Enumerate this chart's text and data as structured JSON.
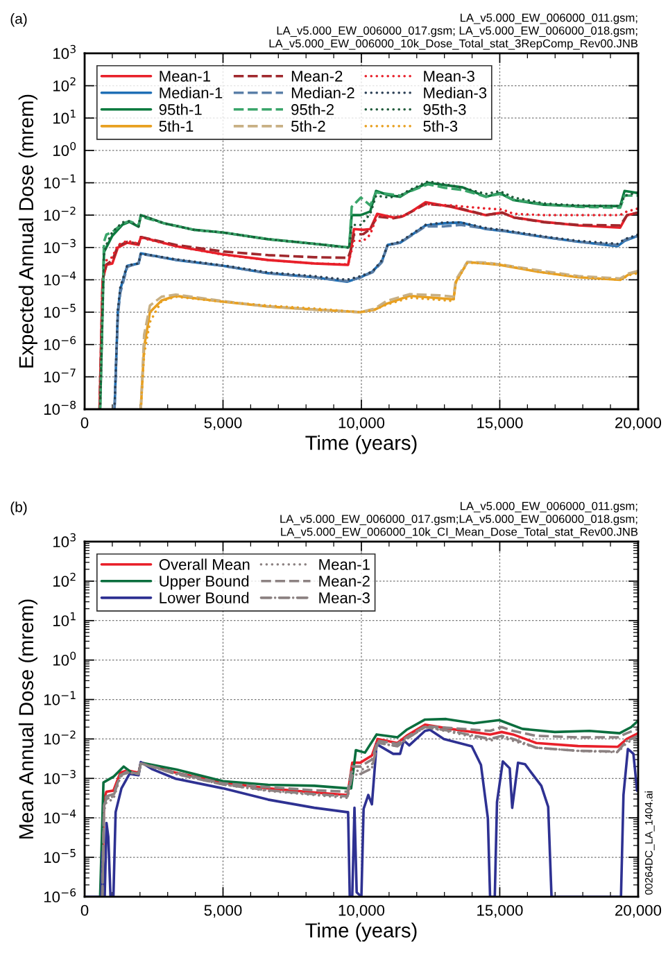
{
  "chart_data": [
    {
      "type": "line",
      "title": "(a)",
      "xlabel": "Time (years)",
      "ylabel": "Expected Annual Dose (mrem)",
      "annotations": [
        "LA_v5.000_EW_006000_011.gsm;\nLA_v5.000_EW_006000_017.gsm; LA_v5.000_EW_006000_018.gsm;\nLA_v5.000_EW_006000_10k_Dose_Total_stat_3RepComp_Rev00.JNB"
      ],
      "log": "y",
      "grid": true,
      "legend": "top left",
      "xlim": [
        0,
        20000
      ],
      "ylim": [
        1e-08,
        1000
      ],
      "xticks": [
        0,
        {
          "value": 1000,
          "label": null
        },
        {
          "value": 2000,
          "label": null
        },
        {
          "value": 3000,
          "label": null
        },
        {
          "value": 4000,
          "label": null
        },
        {
          "value": 5000,
          "label": "5,000"
        },
        {
          "value": 6000,
          "label": null
        },
        {
          "value": 7000,
          "label": null
        },
        {
          "value": 8000,
          "label": null
        },
        {
          "value": 9000,
          "label": null
        },
        {
          "value": 10000,
          "label": "10,000"
        },
        {
          "value": 11000,
          "label": null
        },
        {
          "value": 12000,
          "label": null
        },
        {
          "value": 13000,
          "label": null
        },
        {
          "value": 14000,
          "label": null
        },
        {
          "value": 15000,
          "label": "15,000"
        },
        {
          "value": 16000,
          "label": null
        },
        {
          "value": 17000,
          "label": null
        },
        {
          "value": 18000,
          "label": null
        },
        {
          "value": 19000,
          "label": null
        },
        {
          "value": 20000,
          "label": "20,000"
        }
      ],
      "yticks": [
        {
          "value": 1e-08,
          "label": "10$^{−8}$"
        },
        {
          "value": 1e-07,
          "label": "10$^{−7}$"
        },
        {
          "value": 1e-06,
          "label": "10$^{−6}$"
        },
        {
          "value": 1e-05,
          "label": "10$^{−5}$"
        },
        {
          "value": 0.0001,
          "label": "10$^{−4}$"
        },
        {
          "value": 0.001,
          "label": "10$^{−3}$"
        },
        {
          "value": 0.01,
          "label": "10$^{−2}$"
        },
        {
          "value": 0.1,
          "label": "10$^{−1}$"
        },
        {
          "value": 1,
          "label": "10$^{0}$"
        },
        {
          "value": 10,
          "label": "10$^{1}$"
        },
        {
          "value": 100,
          "label": "10$^{2}$"
        },
        {
          "value": 1000,
          "label": "10$^{3}$"
        }
      ],
      "series": [
        {
          "name": "Mean-1",
          "color": "#e8202a",
          "line_style": "solid",
          "x": [
            540,
            650,
            790,
            1000,
            1200,
            1540,
            1950,
            2030,
            3290,
            5000,
            6630,
            8300,
            9520,
            9610,
            9730,
            10070,
            10320,
            10570,
            11150,
            11480,
            11820,
            12320,
            13240,
            14500,
            15080,
            15500,
            16590,
            17840,
            19350,
            19600,
            20000
          ],
          "values": [
            1e-08,
            0.0001,
            0.00029,
            0.00032,
            0.001,
            0.0014,
            0.0012,
            0.0021,
            0.0011,
            0.00061,
            0.00041,
            0.00032,
            0.00029,
            0.00072,
            0.0037,
            0.0035,
            0.0037,
            0.011,
            0.0085,
            0.0091,
            0.013,
            0.025,
            0.018,
            0.01,
            0.012,
            0.0085,
            0.0062,
            0.0048,
            0.0041,
            0.01,
            0.012
          ]
        },
        {
          "name": "Median-1",
          "color": "#1f6fb5",
          "line_style": "solid",
          "x": [
            1080,
            1200,
            1290,
            1540,
            1950,
            2030,
            3290,
            5000,
            6630,
            8300,
            9480,
            9980,
            10400,
            10740,
            10950,
            11400,
            12320,
            13000,
            13580,
            14500,
            15170,
            16590,
            17840,
            19260,
            19510,
            20000
          ],
          "values": [
            1e-08,
            1e-05,
            5.1e-05,
            0.00027,
            0.00032,
            0.00066,
            0.00041,
            0.00027,
            0.00016,
            0.00012,
            8.7e-05,
            0.00012,
            0.00018,
            0.00037,
            0.0012,
            0.0014,
            0.0048,
            0.0056,
            0.0059,
            0.0037,
            0.0032,
            0.0021,
            0.0015,
            0.0011,
            0.0016,
            0.0023
          ]
        },
        {
          "name": "95th-1",
          "color": "#0b7a3e",
          "line_style": "solid",
          "x": [
            560,
            700,
            785,
            1000,
            1370,
            1620,
            1950,
            2030,
            2870,
            3960,
            5000,
            6630,
            8300,
            9520,
            9565,
            9650,
            9980,
            10320,
            10530,
            10990,
            11400,
            11660,
            12410,
            13000,
            13660,
            14500,
            15000,
            15500,
            16590,
            17840,
            19350,
            19510,
            20000
          ],
          "values": [
            1e-08,
            0.00072,
            0.001,
            0.0023,
            0.0051,
            0.0062,
            0.0044,
            0.01,
            0.0056,
            0.0035,
            0.0029,
            0.0018,
            0.0013,
            0.001,
            0.0011,
            0.01,
            0.01,
            0.013,
            0.056,
            0.041,
            0.037,
            0.051,
            0.1,
            0.085,
            0.072,
            0.037,
            0.048,
            0.029,
            0.021,
            0.019,
            0.019,
            0.056,
            0.048
          ]
        },
        {
          "name": "5th-1",
          "color": "#e8a021",
          "line_style": "solid",
          "x": [
            2030,
            2150,
            2360,
            2780,
            3290,
            5000,
            6630,
            8300,
            9970,
            10490,
            10900,
            11740,
            12830,
            13330,
            13410,
            13830,
            14500,
            15000,
            16340,
            17840,
            19350,
            19680,
            20000
          ],
          "values": [
            1e-08,
            8.5e-07,
            1e-05,
            2.3e-05,
            3.2e-05,
            2.1e-05,
            1.5e-05,
            1.2e-05,
            1e-05,
            1.2e-05,
            1.8e-05,
            3.2e-05,
            2.7e-05,
            2.5e-05,
            8.5e-05,
            0.00035,
            0.00032,
            0.00029,
            0.00018,
            0.00012,
            0.0001,
            0.00015,
            0.00018
          ]
        },
        {
          "name": "Mean-2",
          "color": "#a0282d",
          "line_style": "dashed",
          "x": [
            540,
            650,
            790,
            1000,
            1200,
            1540,
            1950,
            2030,
            3290,
            5000,
            6630,
            8300,
            9520,
            9610,
            9730,
            10070,
            10320,
            10570,
            11150,
            11480,
            11820,
            12320,
            13240,
            14500,
            15080,
            15500,
            16590,
            17840,
            19350,
            19600,
            20000
          ],
          "values": [
            1e-08,
            0.0001,
            0.0003,
            0.0004,
            0.0011,
            0.0015,
            0.0013,
            0.0021,
            0.0012,
            0.00075,
            0.00058,
            0.0005,
            0.00048,
            0.0008,
            0.0025,
            0.0026,
            0.0037,
            0.009,
            0.008,
            0.0091,
            0.013,
            0.022,
            0.019,
            0.01,
            0.012,
            0.0085,
            0.006,
            0.005,
            0.0048,
            0.01,
            0.012
          ]
        },
        {
          "name": "Median-2",
          "color": "#5a7fa8",
          "line_style": "dashed",
          "x": [
            1080,
            1200,
            1290,
            1540,
            1950,
            2030,
            3290,
            5000,
            6630,
            8300,
            9480,
            9980,
            10400,
            10740,
            10950,
            11400,
            12320,
            13000,
            13580,
            14500,
            15170,
            16590,
            17840,
            19260,
            19510,
            20000
          ],
          "values": [
            1e-08,
            8e-06,
            4e-05,
            0.00025,
            0.00033,
            0.00063,
            0.00042,
            0.00027,
            0.00016,
            0.00012,
            9e-05,
            0.00012,
            0.00017,
            0.00035,
            0.0012,
            0.0014,
            0.0045,
            0.0045,
            0.005,
            0.0038,
            0.0033,
            0.0021,
            0.0015,
            0.0012,
            0.0017,
            0.0023
          ]
        },
        {
          "name": "95th-2",
          "color": "#3aa56a",
          "line_style": "dashed",
          "x": [
            560,
            700,
            785,
            1000,
            1370,
            1620,
            1950,
            2030,
            2870,
            3960,
            5000,
            6630,
            8300,
            9520,
            9565,
            9650,
            9980,
            10320,
            10530,
            10990,
            11400,
            11660,
            12410,
            13000,
            13660,
            14500,
            15000,
            15500,
            16590,
            17840,
            19350,
            19510,
            20000
          ],
          "values": [
            1e-08,
            0.0015,
            0.0025,
            0.003,
            0.0055,
            0.0065,
            0.005,
            0.009,
            0.0056,
            0.0035,
            0.0029,
            0.0018,
            0.0013,
            0.001,
            0.0012,
            0.018,
            0.035,
            0.02,
            0.05,
            0.045,
            0.04,
            0.05,
            0.09,
            0.07,
            0.06,
            0.037,
            0.045,
            0.03,
            0.022,
            0.018,
            0.017,
            0.04,
            0.04
          ]
        },
        {
          "name": "5th-2",
          "color": "#c8b084",
          "line_style": "dashed",
          "x": [
            2030,
            2150,
            2360,
            2780,
            3290,
            5000,
            6630,
            8300,
            9970,
            10490,
            10900,
            11740,
            12830,
            13330,
            13410,
            13830,
            14500,
            15000,
            16340,
            17840,
            19350,
            19680,
            20000
          ],
          "values": [
            1e-08,
            2e-06,
            1.6e-05,
            3e-05,
            3.5e-05,
            2.2e-05,
            1.5e-05,
            1.2e-05,
            1e-05,
            1.3e-05,
            2.2e-05,
            3.6e-05,
            3.3e-05,
            3e-05,
            0.0001,
            0.00036,
            0.00034,
            0.0003,
            0.0002,
            0.00013,
            0.00011,
            0.00016,
            0.00019
          ]
        },
        {
          "name": "Mean-3",
          "color": "#e8202a",
          "line_style": "dotted",
          "x": [
            540,
            650,
            790,
            1000,
            1200,
            1540,
            1950,
            2030,
            3290,
            5000,
            6630,
            8300,
            9520,
            9610,
            9730,
            10070,
            10320,
            10570,
            11150,
            11480,
            11820,
            12320,
            13240,
            14500,
            15080,
            15500,
            16590,
            17840,
            19350,
            19600,
            20000
          ],
          "values": [
            1e-08,
            0.0001,
            0.0004,
            0.0005,
            0.0012,
            0.0016,
            0.0013,
            0.002,
            0.0011,
            0.0006,
            0.00041,
            0.00032,
            0.0003,
            0.0006,
            0.0016,
            0.0016,
            0.0025,
            0.01,
            0.0085,
            0.0091,
            0.013,
            0.022,
            0.02,
            0.016,
            0.015,
            0.011,
            0.01,
            0.01,
            0.01,
            0.013,
            0.016
          ]
        },
        {
          "name": "Median-3",
          "color": "#2b3f55",
          "line_style": "dotted",
          "x": [
            1080,
            1200,
            1290,
            1540,
            1950,
            2030,
            3290,
            5000,
            6630,
            8300,
            9480,
            9980,
            10400,
            10740,
            10950,
            11400,
            12320,
            13000,
            13580,
            14500,
            15170,
            16590,
            17840,
            19260,
            19510,
            20000
          ],
          "values": [
            1e-08,
            1.2e-05,
            6e-05,
            0.00028,
            0.00032,
            0.00065,
            0.00043,
            0.00028,
            0.00017,
            0.00013,
            0.0001,
            0.00013,
            0.00018,
            0.0004,
            0.0012,
            0.0015,
            0.005,
            0.006,
            0.006,
            0.004,
            0.0034,
            0.0022,
            0.0016,
            0.0013,
            0.0018,
            0.0025
          ]
        },
        {
          "name": "95th-3",
          "color": "#1f5a3a",
          "line_style": "dotted",
          "x": [
            560,
            700,
            785,
            1000,
            1370,
            1620,
            1950,
            2030,
            2870,
            3960,
            5000,
            6630,
            8300,
            9520,
            9565,
            9650,
            9980,
            10320,
            10530,
            10990,
            11400,
            11660,
            12410,
            13000,
            13660,
            14500,
            15000,
            15500,
            16590,
            17840,
            19350,
            19510,
            20000
          ],
          "values": [
            1e-08,
            0.0006,
            0.0012,
            0.003,
            0.006,
            0.0065,
            0.0045,
            0.01,
            0.0056,
            0.0035,
            0.0029,
            0.0018,
            0.0013,
            0.001,
            0.001,
            0.005,
            0.005,
            0.011,
            0.04,
            0.035,
            0.04,
            0.055,
            0.11,
            0.09,
            0.07,
            0.045,
            0.055,
            0.035,
            0.023,
            0.02,
            0.019,
            0.04,
            0.05
          ]
        },
        {
          "name": "5th-3",
          "color": "#e8a021",
          "line_style": "dotted",
          "x": [
            2030,
            2150,
            2360,
            2780,
            3290,
            5000,
            6630,
            8300,
            9970,
            10490,
            10900,
            11740,
            12830,
            13330,
            13410,
            13830,
            14500,
            15000,
            16340,
            17840,
            19350,
            19680,
            20000
          ],
          "values": [
            1e-08,
            5e-07,
            5e-06,
            2.2e-05,
            3e-05,
            2.1e-05,
            1.6e-05,
            1.3e-05,
            1e-05,
            1.2e-05,
            1.7e-05,
            2.8e-05,
            2.4e-05,
            2.2e-05,
            8e-05,
            0.00034,
            0.00032,
            0.0003,
            0.00018,
            0.00012,
            0.0001,
            0.00014,
            0.00016
          ]
        }
      ]
    },
    {
      "type": "line",
      "title": "(b)",
      "xlabel": "Time (years)",
      "ylabel": "Mean Annual Dose (mrem)",
      "annotations": [
        "LA_v5.000_EW_006000_011.gsm;\nLA_v5.000_EW_006000_017.gsm;LA_v5.000_EW_006000_018.gsm;\nLA_v5.000_EW_006000_10k_CI_Mean_Dose_Total_stat_Rev00.JNB",
        "00264DC_LA_1404.ai"
      ],
      "log": "y",
      "grid": true,
      "legend": "top left",
      "xlim": [
        0,
        20000
      ],
      "ylim": [
        1e-06,
        1000
      ],
      "xticks": [
        0,
        {
          "value": 1000,
          "label": null
        },
        {
          "value": 2000,
          "label": null
        },
        {
          "value": 3000,
          "label": null
        },
        {
          "value": 4000,
          "label": null
        },
        {
          "value": 5000,
          "label": "5,000"
        },
        {
          "value": 6000,
          "label": null
        },
        {
          "value": 7000,
          "label": null
        },
        {
          "value": 8000,
          "label": null
        },
        {
          "value": 9000,
          "label": null
        },
        {
          "value": 10000,
          "label": "10,000"
        },
        {
          "value": 11000,
          "label": null
        },
        {
          "value": 12000,
          "label": null
        },
        {
          "value": 13000,
          "label": null
        },
        {
          "value": 14000,
          "label": null
        },
        {
          "value": 15000,
          "label": "15,000"
        },
        {
          "value": 16000,
          "label": null
        },
        {
          "value": 17000,
          "label": null
        },
        {
          "value": 18000,
          "label": null
        },
        {
          "value": 19000,
          "label": null
        },
        {
          "value": 20000,
          "label": "20,000"
        }
      ],
      "yticks": [
        {
          "value": 1e-06,
          "label": "10$^{−6}$"
        },
        {
          "value": 1e-05,
          "label": "10$^{−5}$"
        },
        {
          "value": 0.0001,
          "label": "10$^{−4}$"
        },
        {
          "value": 0.001,
          "label": "10$^{−3}$"
        },
        {
          "value": 0.01,
          "label": "10$^{−2}$"
        },
        {
          "value": 0.1,
          "label": "10$^{−1}$"
        },
        {
          "value": 1,
          "label": "10$^{0}$"
        },
        {
          "value": 10,
          "label": "10$^{1}$"
        },
        {
          "value": 100,
          "label": "10$^{2}$"
        },
        {
          "value": 1000,
          "label": "10$^{3}$"
        }
      ],
      "series": [
        {
          "name": "Overall Mean",
          "color": "#e8202a",
          "line_style": "solid",
          "x": [
            640,
            700,
            785,
            1040,
            1290,
            1540,
            1950,
            2030,
            3290,
            5000,
            6630,
            8300,
            9500,
            9670,
            9960,
            10380,
            10590,
            11300,
            11630,
            12300,
            13220,
            14650,
            15070,
            15480,
            16320,
            17830,
            19260,
            19590,
            20000
          ],
          "values": [
            1e-06,
            0.00029,
            0.00046,
            0.00049,
            0.0014,
            0.0016,
            0.0014,
            0.0025,
            0.0014,
            0.00079,
            0.00056,
            0.00044,
            0.00038,
            0.0025,
            0.0025,
            0.0038,
            0.01,
            0.0079,
            0.012,
            0.023,
            0.018,
            0.013,
            0.015,
            0.013,
            0.0079,
            0.0066,
            0.0063,
            0.01,
            0.014
          ]
        },
        {
          "name": "Upper Bound",
          "color": "#0b6e3e",
          "line_style": "solid",
          "x": [
            560,
            680,
            1040,
            1410,
            1700,
            1950,
            2030,
            3290,
            5000,
            6630,
            8300,
            9520,
            9630,
            9800,
            10130,
            10550,
            11300,
            11630,
            12300,
            13060,
            14060,
            14980,
            15820,
            16990,
            18240,
            19330,
            19750,
            20000
          ],
          "values": [
            1e-06,
            0.00079,
            0.0011,
            0.002,
            0.0014,
            0.0013,
            0.0025,
            0.0017,
            0.00085,
            0.00069,
            0.00065,
            0.00056,
            0.00056,
            0.0052,
            0.0045,
            0.013,
            0.011,
            0.017,
            0.031,
            0.032,
            0.025,
            0.03,
            0.018,
            0.015,
            0.016,
            0.014,
            0.02,
            0.029
          ]
        },
        {
          "name": "Lower Bound",
          "color": "#2e3192",
          "line_style": "solid",
          "x": [
            0,
            600,
            640,
            725,
            790,
            855,
            935,
            1040,
            1120,
            1330,
            1620,
            1950,
            2030,
            2450,
            3290,
            5000,
            6630,
            8300,
            9480,
            9520,
            9580,
            9670,
            9750,
            9830,
            10000,
            10080,
            10250,
            10380,
            10550,
            11150,
            11400,
            11530,
            11730,
            12300,
            12480,
            12980,
            13990,
            14320,
            14570,
            14650,
            14820,
            14900,
            15110,
            15360,
            15450,
            15660,
            15910,
            16500,
            16750,
            16870,
            19380,
            19470,
            19630,
            19830,
            19960,
            20000
          ],
          "values": [
            1e-06,
            1e-06,
            1.4e-05,
            1e-06,
            7.4e-05,
            3.3e-05,
            1e-06,
            1e-06,
            0.00014,
            0.00056,
            0.0013,
            0.0012,
            0.0026,
            0.0017,
            0.00098,
            0.00056,
            0.00029,
            0.00018,
            0.00014,
            0.00014,
            1e-06,
            1e-06,
            0.00018,
            1.3e-06,
            1e-06,
            0.00017,
            0.00038,
            0.00022,
            0.0074,
            0.0042,
            0.0042,
            0.0091,
            0.0069,
            0.016,
            0.017,
            0.01,
            0.0065,
            0.0022,
            9.8e-05,
            1e-06,
            1e-06,
            0.00025,
            0.0027,
            0.0018,
            0.00018,
            0.0025,
            0.0023,
            0.00065,
            0.00019,
            1e-06,
            1e-06,
            0.00038,
            0.0056,
            0.0042,
            0.00049,
            0.00073
          ]
        },
        {
          "name": "Mean-1",
          "color": "#8c8282",
          "line_style": "dotted",
          "x": [
            640,
            700,
            785,
            1040,
            1290,
            1540,
            1950,
            2030,
            3290,
            5000,
            6630,
            8300,
            9500,
            9670,
            9960,
            10380,
            10590,
            11300,
            11630,
            12300,
            13220,
            14650,
            15070,
            15480,
            16320,
            17830,
            19260,
            19590,
            20000
          ],
          "values": [
            1e-06,
            0.00015,
            0.00025,
            0.0003,
            0.0011,
            0.0014,
            0.0013,
            0.0024,
            0.0013,
            0.0007,
            0.00048,
            0.00038,
            0.00032,
            0.0015,
            0.0016,
            0.0022,
            0.008,
            0.0065,
            0.01,
            0.02,
            0.015,
            0.009,
            0.011,
            0.009,
            0.006,
            0.005,
            0.0046,
            0.008,
            0.011
          ]
        },
        {
          "name": "Mean-2",
          "color": "#8c8282",
          "line_style": "dashed",
          "x": [
            640,
            700,
            785,
            1040,
            1290,
            1540,
            1950,
            2030,
            3290,
            5000,
            6630,
            8300,
            9500,
            9670,
            9960,
            10380,
            10590,
            11300,
            11630,
            12300,
            13220,
            14650,
            15070,
            15480,
            16320,
            17830,
            19260,
            19590,
            20000
          ],
          "values": [
            1e-06,
            0.0002,
            0.00035,
            0.0004,
            0.0012,
            0.0015,
            0.0013,
            0.0024,
            0.0014,
            0.00075,
            0.0006,
            0.0005,
            0.00046,
            0.002,
            0.002,
            0.003,
            0.009,
            0.0075,
            0.011,
            0.021,
            0.019,
            0.016,
            0.02,
            0.016,
            0.012,
            0.011,
            0.011,
            0.014,
            0.018
          ]
        },
        {
          "name": "Mean-3",
          "color": "#8c8282",
          "line_style": "dashdot",
          "x": [
            640,
            700,
            785,
            1040,
            1290,
            1540,
            1950,
            2030,
            3290,
            5000,
            6630,
            8300,
            9500,
            9670,
            9960,
            10380,
            10590,
            11300,
            11630,
            12300,
            13220,
            14650,
            15070,
            15480,
            16320,
            17830,
            19260,
            19590,
            20000
          ],
          "values": [
            1e-06,
            0.0002,
            0.0003,
            0.00035,
            0.0012,
            0.0014,
            0.0013,
            0.0024,
            0.0013,
            0.0007,
            0.0005,
            0.0004,
            0.00035,
            0.0012,
            0.0013,
            0.0018,
            0.008,
            0.0065,
            0.01,
            0.02,
            0.016,
            0.01,
            0.012,
            0.01,
            0.006,
            0.005,
            0.0048,
            0.009,
            0.012
          ]
        }
      ]
    }
  ]
}
